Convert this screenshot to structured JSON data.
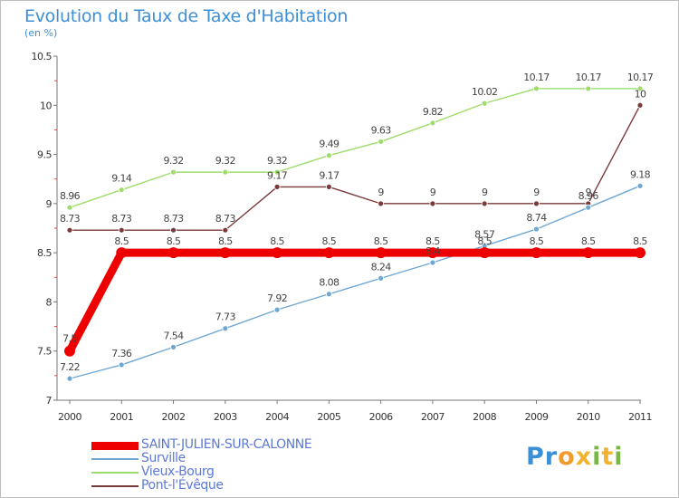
{
  "title": "Evolution du Taux de Taxe d'Habitation",
  "subtitle": "(en %)",
  "brand": {
    "text": "Proxiti",
    "letters": [
      "P",
      "r",
      "o",
      "x",
      "i",
      "t",
      "i"
    ],
    "colors": [
      "#3b8fd4",
      "#3b8fd4",
      "#f29a2e",
      "#f2b32e",
      "#7ab648",
      "#f2b32e",
      "#7ab648"
    ]
  },
  "chart_data": {
    "type": "line",
    "title": "Evolution du Taux de Taxe d'Habitation",
    "ylabel": "(en %)",
    "x": [
      "2000",
      "2001",
      "2002",
      "2003",
      "2004",
      "2005",
      "2006",
      "2007",
      "2008",
      "2009",
      "2010",
      "2011"
    ],
    "ylim": [
      7,
      10.5
    ],
    "yticks": [
      "7",
      "7.5",
      "8",
      "8.5",
      "9",
      "9.5",
      "10",
      "10.5"
    ],
    "grid": false,
    "legend_position": "bottom-left",
    "series": [
      {
        "name": "SAINT-JULIEN-SUR-CALONNE",
        "color": "#ee0000",
        "values": [
          7.5,
          8.5,
          8.5,
          8.5,
          8.5,
          8.5,
          8.5,
          8.5,
          8.5,
          8.5,
          8.5,
          8.5
        ],
        "labels": [
          "7.5",
          "8.5",
          "8.5",
          "8.5",
          "8.5",
          "8.5",
          "8.5",
          "8.5",
          "8.5",
          "8.5",
          "8.5",
          "8.5"
        ]
      },
      {
        "name": "Surville",
        "color": "#6fa7d3",
        "values": [
          7.22,
          7.36,
          7.54,
          7.73,
          7.92,
          8.08,
          8.24,
          8.4,
          8.57,
          8.74,
          8.96,
          9.18
        ],
        "labels": [
          "7.22",
          "7.36",
          "7.54",
          "7.73",
          "7.92",
          "8.08",
          "8.24",
          "8.4",
          "8.57",
          "8.74",
          "8.96",
          "9.18"
        ]
      },
      {
        "name": "Vieux-Bourg",
        "color": "#9edc6c",
        "values": [
          8.96,
          9.14,
          9.32,
          9.32,
          9.32,
          9.49,
          9.63,
          9.82,
          10.02,
          10.17,
          10.17,
          10.17
        ],
        "labels": [
          "8.96",
          "9.14",
          "9.32",
          "9.32",
          "9.32",
          "9.49",
          "9.63",
          "9.82",
          "10.02",
          "10.17",
          "10.17",
          "10.17"
        ]
      },
      {
        "name": "Pont-l'Évêque",
        "color": "#7a3a3a",
        "values": [
          8.73,
          8.73,
          8.73,
          8.73,
          9.17,
          9.17,
          9,
          9,
          9,
          9,
          9,
          10
        ],
        "labels": [
          "8.73",
          "8.73",
          "8.73",
          "8.73",
          "9.17",
          "9.17",
          "9",
          "9",
          "9",
          "9",
          "9",
          "10"
        ]
      }
    ]
  }
}
